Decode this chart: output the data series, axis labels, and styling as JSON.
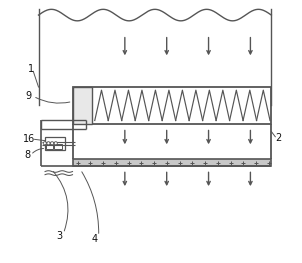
{
  "bg_color": "#ffffff",
  "line_color": "#555555",
  "lw": 1.0,
  "fig_w": 3.02,
  "fig_h": 2.63,
  "dpi": 100
}
